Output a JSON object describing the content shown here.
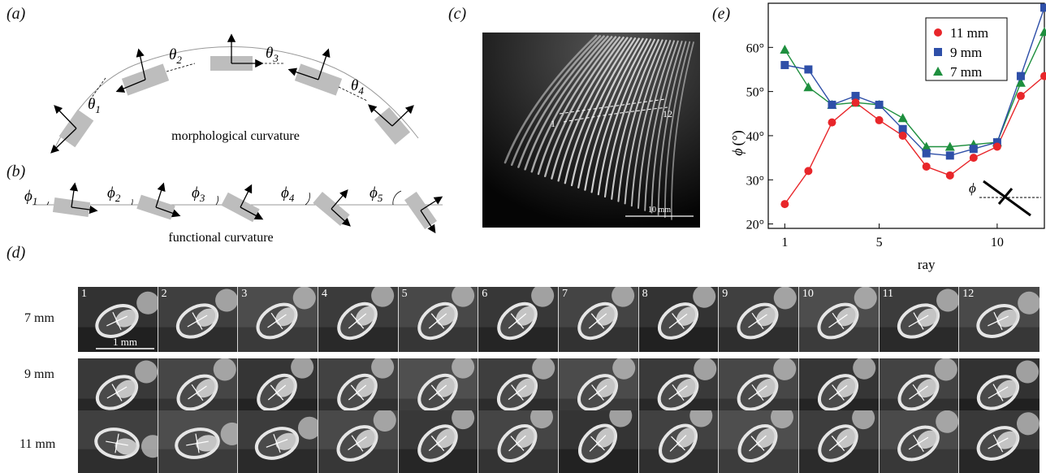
{
  "panels": {
    "a": {
      "label": "(a)",
      "caption": "morphological curvature",
      "angles": [
        {
          "sym": "θ",
          "sub": "1"
        },
        {
          "sym": "θ",
          "sub": "2"
        },
        {
          "sym": "θ",
          "sub": "3"
        },
        {
          "sym": "θ",
          "sub": "4"
        }
      ]
    },
    "b": {
      "label": "(b)",
      "caption": "functional curvature",
      "angles": [
        {
          "sym": "ϕ",
          "sub": "1"
        },
        {
          "sym": "ϕ",
          "sub": "2"
        },
        {
          "sym": "ϕ",
          "sub": "3"
        },
        {
          "sym": "ϕ",
          "sub": "4"
        },
        {
          "sym": "ϕ",
          "sub": "5"
        }
      ]
    },
    "c": {
      "label": "(c)",
      "ray_start": "1",
      "ray_end": "12",
      "scale_bar": "10 mm"
    },
    "d": {
      "label": "(d)",
      "scale_bar": "1 mm",
      "rows": [
        "7 mm",
        "9 mm",
        "11 mm"
      ],
      "cells": [
        "1",
        "2",
        "3",
        "4",
        "5",
        "6",
        "7",
        "8",
        "9",
        "10",
        "11",
        "12"
      ]
    },
    "e": {
      "label": "(e)",
      "inset_symbol": "ϕ"
    }
  },
  "chart_data": {
    "type": "line",
    "xlabel": "ray",
    "ylabel_symbol": "ϕ",
    "ylabel_unit": "(°)",
    "xlim": [
      0.3,
      12
    ],
    "ylim": [
      19,
      70
    ],
    "xticks": [
      1,
      5,
      10
    ],
    "yticks": [
      20,
      30,
      40,
      50,
      60
    ],
    "ytick_labels": [
      "20°",
      "30°",
      "40°",
      "50°",
      "60°"
    ],
    "x": [
      1,
      2,
      3,
      4,
      5,
      6,
      7,
      8,
      9,
      10,
      11,
      12
    ],
    "series": [
      {
        "name": "11 mm",
        "color": "#e8262a",
        "marker": "circle",
        "values": [
          24.5,
          32,
          43,
          47.5,
          43.5,
          40,
          33,
          31,
          35,
          37.5,
          49,
          53.5
        ]
      },
      {
        "name": "9 mm",
        "color": "#2e4fa8",
        "marker": "square",
        "values": [
          56,
          55,
          47,
          49,
          47,
          41.5,
          36,
          35.5,
          37,
          38.5,
          53.5,
          69
        ]
      },
      {
        "name": "7 mm",
        "color": "#1e8f3e",
        "marker": "triangle",
        "values": [
          59.5,
          51,
          47,
          47.5,
          47,
          44,
          37.5,
          37.5,
          38,
          38.5,
          52,
          63.5
        ]
      }
    ],
    "legend_position": "top-right"
  }
}
